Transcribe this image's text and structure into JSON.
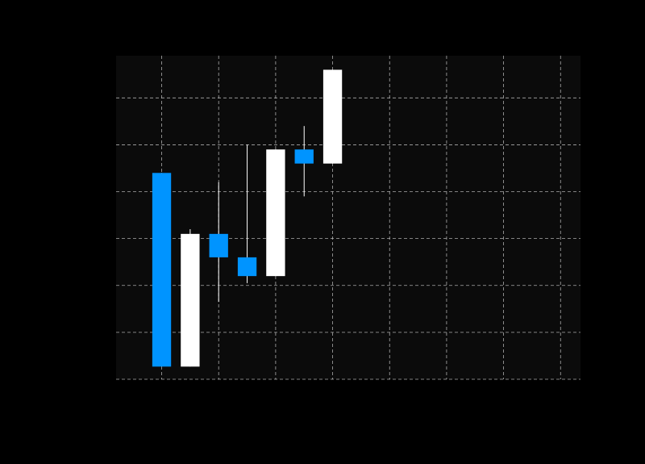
{
  "chart_data": {
    "type": "candlestick",
    "title": "",
    "xlabel": "",
    "ylabel": "",
    "xlim": [
      -0.8,
      7.35
    ],
    "ylim": [
      0,
      6.9
    ],
    "grid": true,
    "x_gridlines": [
      0,
      1,
      2,
      3,
      4,
      5,
      6,
      7
    ],
    "y_gridlines": [
      0,
      1,
      2,
      3,
      4,
      5,
      6
    ],
    "colors": {
      "up": "#ffffff",
      "down": "#0094ff",
      "wick": "#ffffff",
      "grid": "#bdbdbd",
      "plot_background": "#0b0b0b",
      "figure_background": "#000000"
    },
    "candles": [
      {
        "x": 0.0,
        "open": 4.4,
        "close": 0.27,
        "high": 4.4,
        "low": 0.27
      },
      {
        "x": 0.5,
        "open": 0.27,
        "close": 3.1,
        "high": 3.2,
        "low": 0.27
      },
      {
        "x": 1.0,
        "open": 3.1,
        "close": 2.6,
        "high": 4.2,
        "low": 1.65
      },
      {
        "x": 1.5,
        "open": 2.6,
        "close": 2.2,
        "high": 5.0,
        "low": 2.05
      },
      {
        "x": 2.0,
        "open": 2.2,
        "close": 4.9,
        "high": 4.9,
        "low": 2.2
      },
      {
        "x": 2.5,
        "open": 4.9,
        "close": 4.6,
        "high": 5.4,
        "low": 3.9
      },
      {
        "x": 3.0,
        "open": 4.6,
        "close": 6.6,
        "high": 6.6,
        "low": 4.6
      }
    ]
  }
}
